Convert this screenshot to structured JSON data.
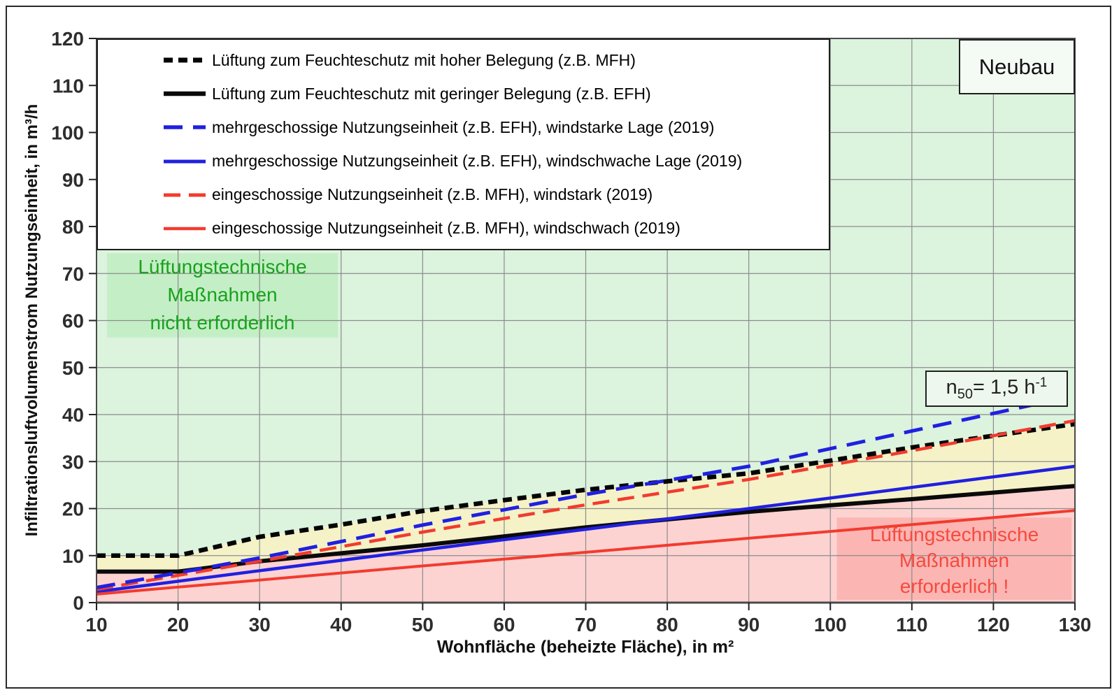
{
  "annotations": {
    "neubau": "Neubau",
    "n50": {
      "base": "n",
      "sub": "50",
      "mid": "= 1,5 h",
      "sup": "-1"
    }
  },
  "zone_labels": {
    "green": [
      "Lüftungstechnische",
      "Maßnahmen",
      "nicht erforderlich"
    ],
    "pink": [
      "Lüftungstechnische",
      "Maßnahmen",
      "erforderlich !"
    ]
  },
  "chart_data": {
    "type": "line",
    "xlabel": "Wohnfläche (beheizte Fläche), in m²",
    "ylabel": "Infiltrationsluftvolumenstrom Nutzungseinheit, in m³/h",
    "xlim": [
      10,
      130
    ],
    "ylim": [
      0,
      120
    ],
    "x_ticks": [
      10,
      20,
      30,
      40,
      50,
      60,
      70,
      80,
      90,
      100,
      110,
      120,
      130
    ],
    "y_ticks": [
      0,
      10,
      20,
      30,
      40,
      50,
      60,
      70,
      80,
      90,
      100,
      110,
      120
    ],
    "grid": true,
    "legend_position": "top-left",
    "series": [
      {
        "id": "black_dashed",
        "name": "Lüftung zum Feuchteschutz mit hoher Belegung (z.B. MFH)",
        "color": "#050505",
        "style": "dashed",
        "dash": "13 8",
        "width": 6.5,
        "points": [
          [
            10,
            10
          ],
          [
            20,
            10
          ],
          [
            30,
            14
          ],
          [
            40,
            16.6
          ],
          [
            50,
            19.5
          ],
          [
            60,
            21.8
          ],
          [
            70,
            24
          ],
          [
            80,
            25.8
          ],
          [
            90,
            27.5
          ],
          [
            100,
            30.2
          ],
          [
            110,
            33
          ],
          [
            120,
            35.5
          ],
          [
            130,
            38
          ]
        ]
      },
      {
        "id": "black_solid",
        "name": "Lüftung zum Feuchteschutz mit geringer Belegung (z.B. EFH)",
        "color": "#0a0a0a",
        "style": "solid",
        "dash": "",
        "width": 6,
        "points": [
          [
            10,
            6.6
          ],
          [
            20,
            6.6
          ],
          [
            30,
            8.8
          ],
          [
            40,
            10.5
          ],
          [
            50,
            12.2
          ],
          [
            60,
            14.1
          ],
          [
            70,
            16
          ],
          [
            80,
            17.7
          ],
          [
            90,
            19.3
          ],
          [
            100,
            20.7
          ],
          [
            110,
            22
          ],
          [
            120,
            23.4
          ],
          [
            130,
            24.8
          ]
        ]
      },
      {
        "id": "blue_dashed",
        "name": "mehrgeschossige Nutzungseinheit (z.B. EFH), windstarke Lage (2019)",
        "color": "#2020e0",
        "style": "dashed",
        "dash": "27 15",
        "width": 5,
        "points": [
          [
            10,
            3.2
          ],
          [
            30,
            9.5
          ],
          [
            50,
            16.5
          ],
          [
            70,
            23
          ],
          [
            90,
            29
          ],
          [
            110,
            36.5
          ],
          [
            130,
            44
          ]
        ]
      },
      {
        "id": "blue_solid",
        "name": "mehrgeschossige Nutzungseinheit (z.B. EFH), windschwache Lage (2019)",
        "color": "#2020e0",
        "style": "solid",
        "dash": "",
        "width": 4.5,
        "points": [
          [
            10,
            2.3
          ],
          [
            30,
            6.8
          ],
          [
            50,
            11.2
          ],
          [
            70,
            15.6
          ],
          [
            90,
            20
          ],
          [
            110,
            24.5
          ],
          [
            130,
            29
          ]
        ]
      },
      {
        "id": "red_dashed",
        "name": "eingeschossige Nutzungseinheit (z.B. MFH), windstark (2019)",
        "color": "#f23b2e",
        "style": "dashed",
        "dash": "24 12",
        "width": 4.5,
        "points": [
          [
            10,
            2.8
          ],
          [
            30,
            8.8
          ],
          [
            50,
            15
          ],
          [
            70,
            20.8
          ],
          [
            90,
            26.2
          ],
          [
            110,
            32.3
          ],
          [
            130,
            38.7
          ]
        ]
      },
      {
        "id": "red_solid",
        "name": "eingeschossige Nutzungseinheit (z.B. MFH), windschwach (2019)",
        "color": "#f23b2e",
        "style": "solid",
        "dash": "",
        "width": 4,
        "points": [
          [
            10,
            1.8
          ],
          [
            30,
            4.8
          ],
          [
            50,
            7.8
          ],
          [
            70,
            10.7
          ],
          [
            90,
            13.7
          ],
          [
            110,
            16.6
          ],
          [
            130,
            19.6
          ]
        ]
      }
    ],
    "draw_order": [
      1,
      3,
      5,
      0,
      4,
      2
    ],
    "regions": [
      {
        "name": "no-measures-zone",
        "between": [
          "top",
          "black_dashed"
        ],
        "color": "#dcf3de"
      },
      {
        "name": "intermediate-zone",
        "between": [
          "black_dashed",
          "black_solid"
        ],
        "color": "#f5f2c8"
      },
      {
        "name": "measures-required-zone",
        "between": [
          "black_solid",
          "bottom"
        ],
        "color": "#fcd3d1"
      }
    ],
    "highlight_boxes": [
      {
        "name": "green-zone-box",
        "x": [
          11.3,
          39.6
        ],
        "v": [
          56.4,
          74.3
        ],
        "color": "#c4eec5"
      },
      {
        "name": "pink-zone-box",
        "x": [
          100.8,
          129.6
        ],
        "v": [
          0.6,
          18.1
        ],
        "color": "#fbb5b2"
      }
    ],
    "colors": {
      "grid": "#8c8c8c",
      "frame": "#4a4a4a",
      "tick": "#222222",
      "green_text": "#18a21e",
      "red_text": "#f64a40"
    }
  }
}
